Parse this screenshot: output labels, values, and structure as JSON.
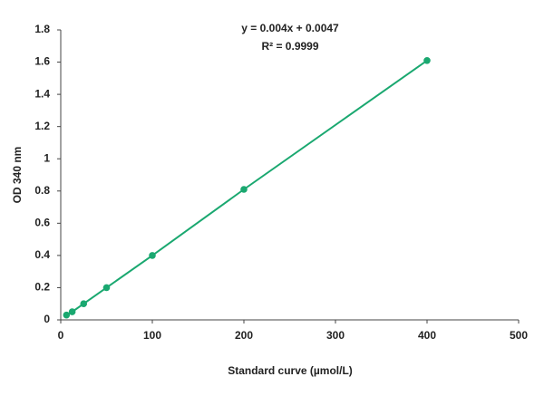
{
  "chart_data": {
    "type": "scatter",
    "x_label": "Standard curve (µmol/L)",
    "y_label": "OD 340 nm",
    "annotations": [
      "y = 0.004x + 0.0047",
      "R² = 0.9999"
    ],
    "series": [
      {
        "color": "#1aa870",
        "x": [
          6.25,
          12.5,
          25,
          50,
          100,
          200,
          400
        ],
        "values": [
          0.03,
          0.05,
          0.1,
          0.2,
          0.4,
          0.81,
          1.61
        ]
      }
    ],
    "trendline": true,
    "xlim": [
      0,
      500
    ],
    "xticks": [
      0,
      100,
      200,
      300,
      400,
      500
    ],
    "ylim": [
      0,
      1.8
    ],
    "yticks": [
      0,
      0.2,
      0.4,
      0.6,
      0.8,
      1,
      1.2,
      1.4,
      1.6,
      1.8
    ],
    "grid": false
  }
}
